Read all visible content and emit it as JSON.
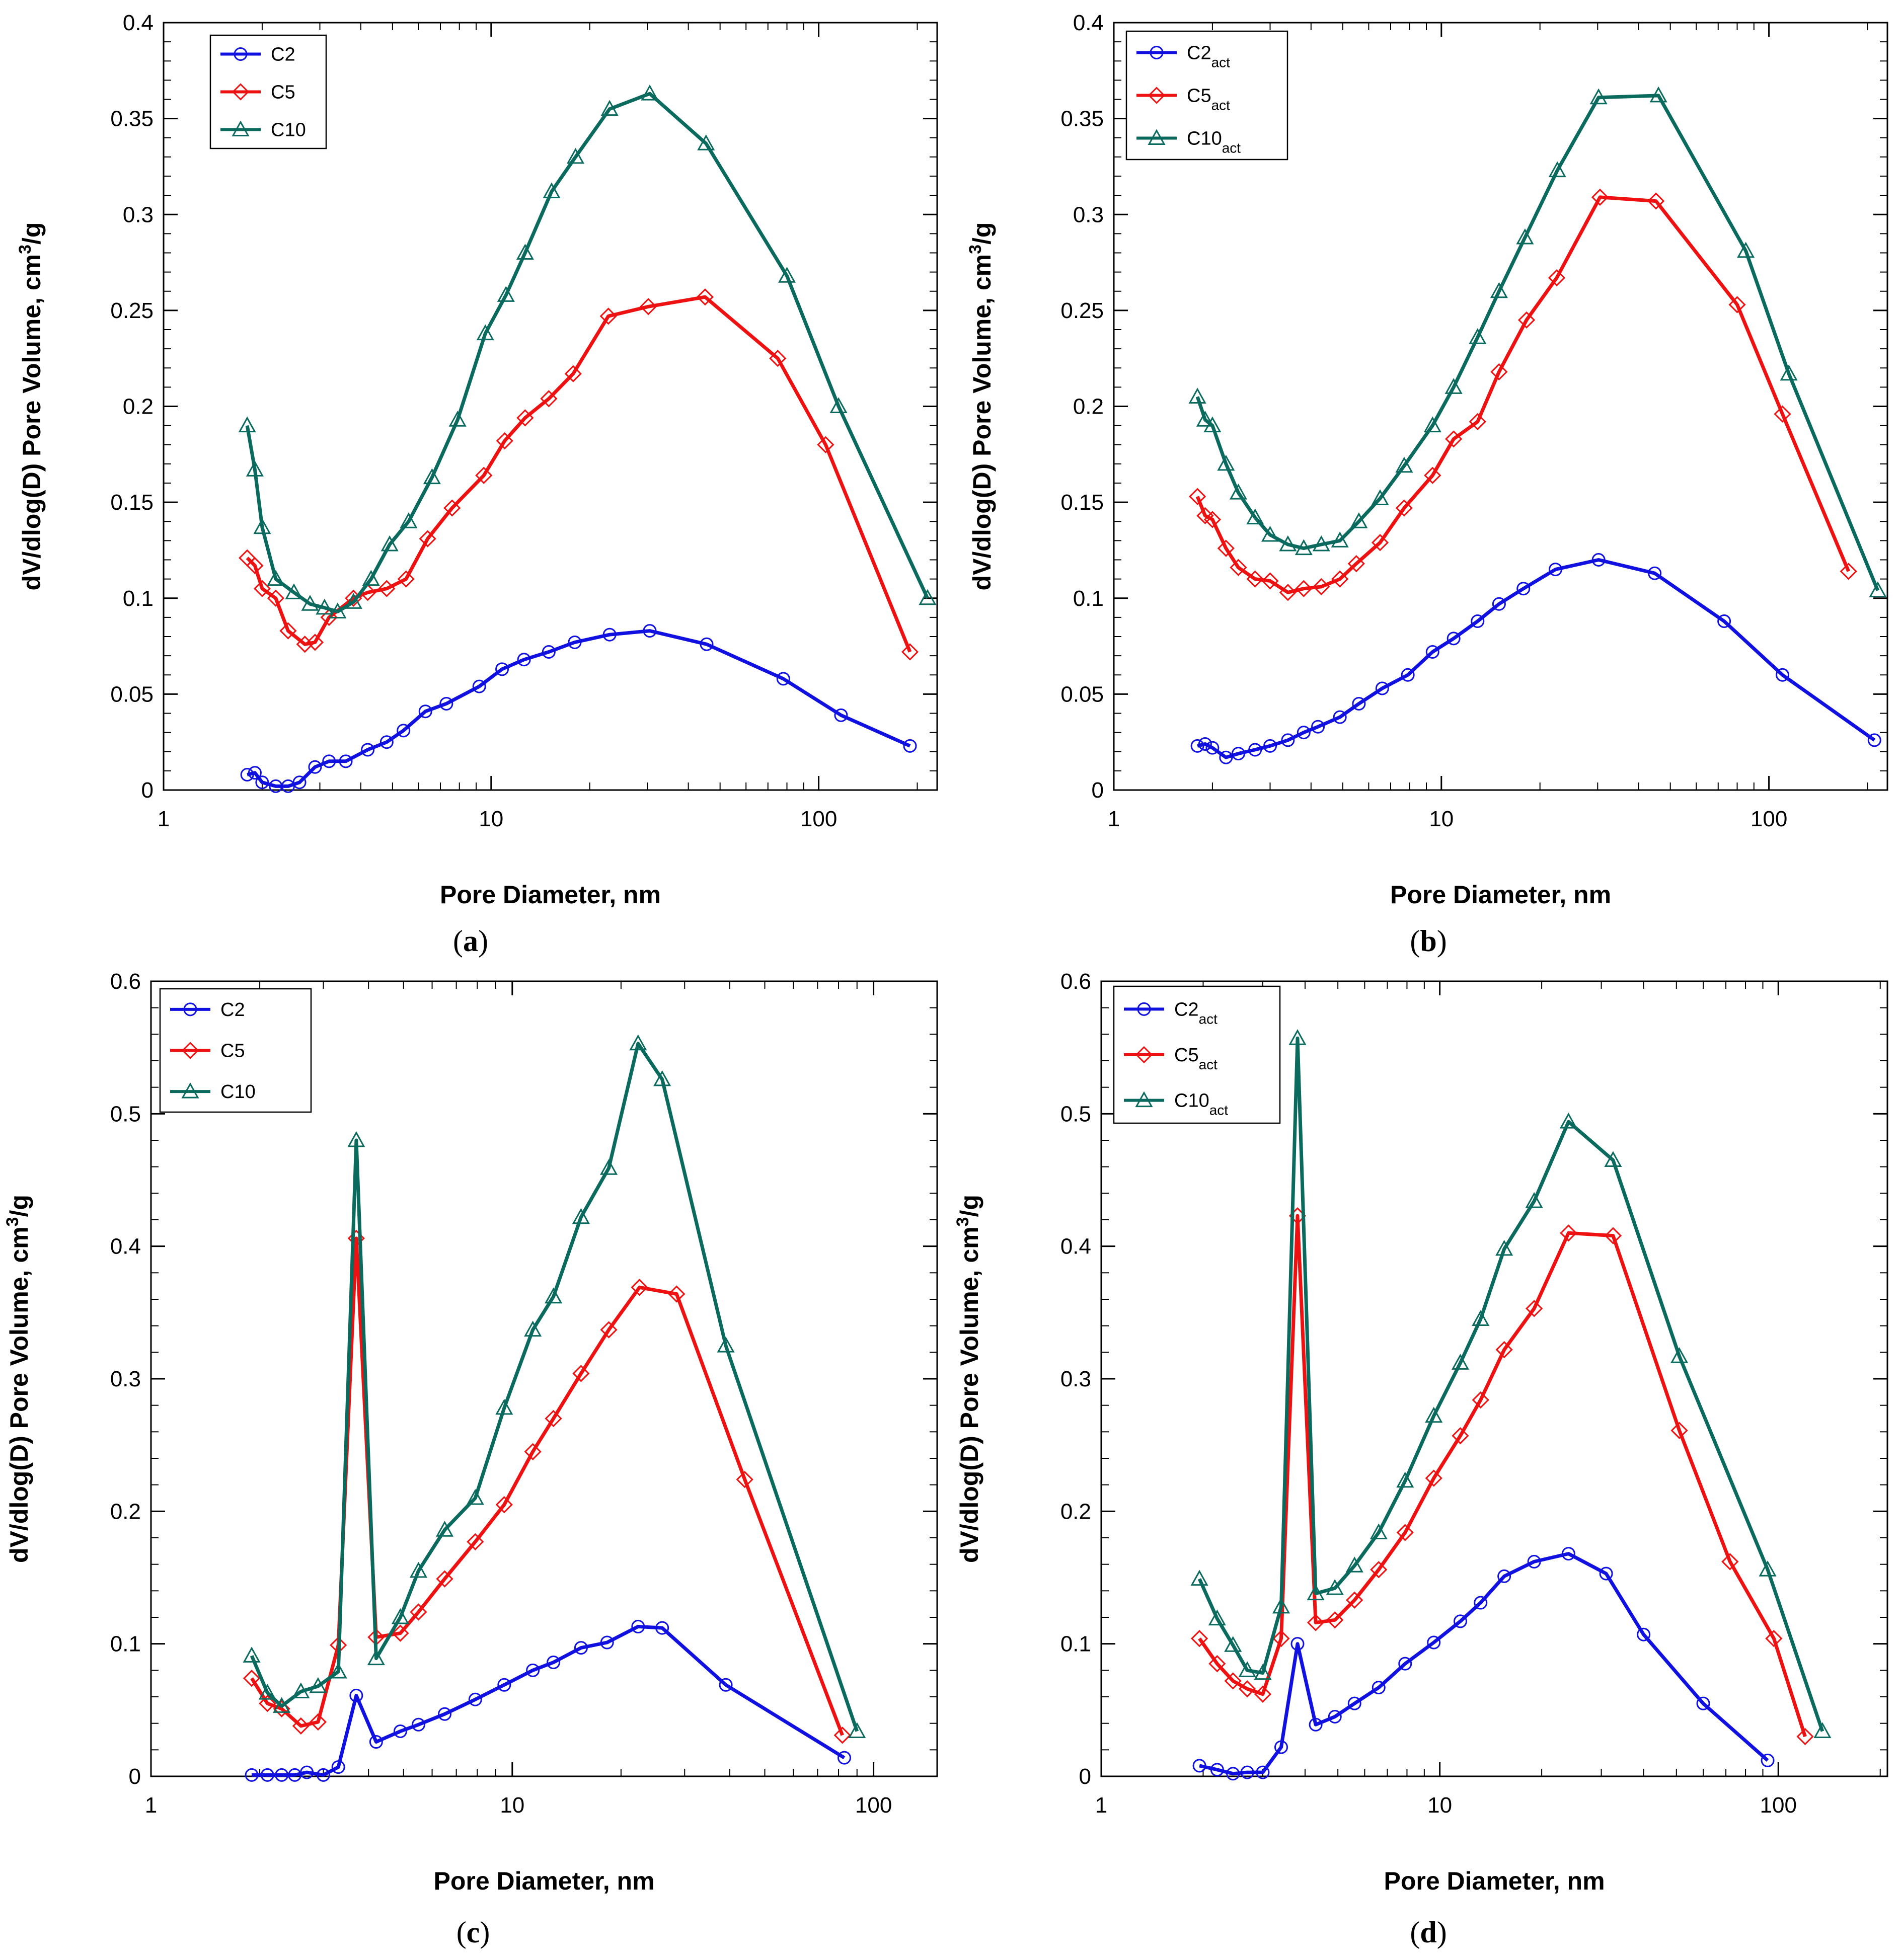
{
  "colors": {
    "C2": "#1010e0",
    "C5": "#ee1111",
    "C10": "#0a6a5e"
  },
  "chart_data": [
    {
      "panel": "a",
      "panel_label": "a",
      "type": "line",
      "x_scale": "log",
      "xlim": [
        1,
        230
      ],
      "ylim": [
        0,
        0.4
      ],
      "xlabel": "Pore Diameter, nm",
      "ylabel": "dV/dlog(D) Pore Volume, cm",
      "ylabel_sup": "3",
      "ylabel_tail": "/g",
      "x_ticks": [
        1,
        10,
        100
      ],
      "x_tick_labels": [
        "1",
        "10",
        "100"
      ],
      "y_ticks": [
        0,
        0.05,
        0.1,
        0.15,
        0.2,
        0.25,
        0.3,
        0.35,
        0.4
      ],
      "y_tick_labels": [
        "0",
        "0.05",
        "0.1",
        "0.15",
        "0.2",
        "0.25",
        "0.3",
        "0.35",
        "0.4"
      ],
      "legend_position": "top-left",
      "series": [
        {
          "name": "C2",
          "sub": "",
          "marker": "circle",
          "color_key": "C2",
          "x": [
            1.8,
            1.9,
            2.0,
            2.2,
            2.4,
            2.6,
            2.9,
            3.2,
            3.6,
            4.2,
            4.8,
            5.4,
            6.3,
            7.3,
            9.2,
            10.8,
            12.6,
            15.0,
            18.0,
            23.0,
            30.5,
            45.5,
            78.0,
            117.0,
            190.0
          ],
          "y": [
            0.008,
            0.009,
            0.004,
            0.002,
            0.002,
            0.004,
            0.012,
            0.015,
            0.015,
            0.021,
            0.025,
            0.031,
            0.041,
            0.045,
            0.054,
            0.063,
            0.068,
            0.072,
            0.077,
            0.081,
            0.083,
            0.076,
            0.058,
            0.039,
            0.023
          ]
        },
        {
          "name": "C5",
          "sub": "",
          "marker": "diamond",
          "color_key": "C5",
          "x": [
            1.8,
            1.9,
            2.0,
            2.2,
            2.4,
            2.7,
            2.9,
            3.2,
            3.8,
            4.2,
            4.8,
            5.5,
            6.4,
            7.6,
            9.5,
            11.0,
            12.7,
            15.0,
            17.8,
            22.8,
            30.2,
            45.0,
            75.0,
            105.0,
            190.0
          ],
          "y": [
            0.121,
            0.117,
            0.105,
            0.1,
            0.083,
            0.076,
            0.077,
            0.09,
            0.1,
            0.103,
            0.105,
            0.11,
            0.131,
            0.147,
            0.164,
            0.182,
            0.194,
            0.204,
            0.217,
            0.247,
            0.252,
            0.257,
            0.225,
            0.18,
            0.072
          ]
        },
        {
          "name": "C10",
          "sub": "",
          "marker": "triangle",
          "color_key": "C10",
          "x": [
            1.8,
            1.9,
            2.0,
            2.2,
            2.5,
            2.8,
            3.1,
            3.4,
            3.8,
            4.3,
            4.9,
            5.6,
            6.6,
            7.9,
            9.6,
            11.1,
            12.7,
            15.3,
            18.1,
            23.0,
            30.5,
            45.3,
            80.0,
            115.0,
            215.0
          ],
          "y": [
            0.19,
            0.167,
            0.137,
            0.11,
            0.103,
            0.097,
            0.095,
            0.093,
            0.098,
            0.11,
            0.128,
            0.14,
            0.163,
            0.193,
            0.238,
            0.258,
            0.28,
            0.312,
            0.33,
            0.355,
            0.363,
            0.337,
            0.268,
            0.2,
            0.1
          ]
        }
      ]
    },
    {
      "panel": "b",
      "panel_label": "b",
      "type": "line",
      "x_scale": "log",
      "xlim": [
        1,
        230
      ],
      "ylim": [
        0,
        0.4
      ],
      "xlabel": "Pore Diameter, nm",
      "ylabel": "dV/dlog(D) Pore Volume, cm",
      "ylabel_sup": "3",
      "ylabel_tail": "/g",
      "x_ticks": [
        1,
        10,
        100
      ],
      "x_tick_labels": [
        "1",
        "10",
        "100"
      ],
      "y_ticks": [
        0,
        0.05,
        0.1,
        0.15,
        0.2,
        0.25,
        0.3,
        0.35,
        0.4
      ],
      "y_tick_labels": [
        "0",
        "0.05",
        "0.1",
        "0.15",
        "0.2",
        "0.25",
        "0.3",
        "0.35",
        "0.4"
      ],
      "legend_position": "top-left",
      "series": [
        {
          "name": "C2",
          "sub": "act",
          "marker": "circle",
          "color_key": "C2",
          "x": [
            1.8,
            1.9,
            2.0,
            2.2,
            2.4,
            2.7,
            3.0,
            3.4,
            3.8,
            4.2,
            4.9,
            5.6,
            6.6,
            7.9,
            9.4,
            10.9,
            12.9,
            15.0,
            17.8,
            22.3,
            30.2,
            44.8,
            73.0,
            110.0,
            210.0
          ],
          "y": [
            0.023,
            0.024,
            0.022,
            0.017,
            0.019,
            0.021,
            0.023,
            0.026,
            0.03,
            0.033,
            0.038,
            0.045,
            0.053,
            0.06,
            0.072,
            0.079,
            0.088,
            0.097,
            0.105,
            0.115,
            0.12,
            0.113,
            0.088,
            0.06,
            0.026
          ]
        },
        {
          "name": "C5",
          "sub": "act",
          "marker": "diamond",
          "color_key": "C5",
          "x": [
            1.8,
            1.9,
            2.0,
            2.2,
            2.4,
            2.7,
            3.0,
            3.4,
            3.8,
            4.3,
            4.9,
            5.5,
            6.5,
            7.7,
            9.4,
            10.9,
            12.9,
            15.0,
            18.2,
            22.5,
            30.5,
            45.2,
            80.0,
            110.0,
            175.0
          ],
          "y": [
            0.153,
            0.143,
            0.141,
            0.126,
            0.116,
            0.11,
            0.109,
            0.103,
            0.105,
            0.106,
            0.11,
            0.118,
            0.129,
            0.147,
            0.164,
            0.183,
            0.192,
            0.218,
            0.245,
            0.267,
            0.309,
            0.307,
            0.253,
            0.196,
            0.114
          ]
        },
        {
          "name": "C10",
          "sub": "act",
          "marker": "triangle",
          "color_key": "C10",
          "x": [
            1.8,
            1.9,
            2.0,
            2.2,
            2.4,
            2.7,
            3.0,
            3.4,
            3.8,
            4.3,
            4.9,
            5.6,
            6.5,
            7.7,
            9.4,
            10.9,
            12.9,
            15.0,
            18.0,
            22.6,
            30.2,
            46.0,
            85.0,
            115.0,
            215.0
          ],
          "y": [
            0.205,
            0.193,
            0.19,
            0.17,
            0.155,
            0.142,
            0.133,
            0.128,
            0.126,
            0.128,
            0.13,
            0.14,
            0.152,
            0.169,
            0.19,
            0.21,
            0.236,
            0.26,
            0.288,
            0.323,
            0.361,
            0.362,
            0.281,
            0.217,
            0.104
          ]
        }
      ]
    },
    {
      "panel": "c",
      "panel_label": "c",
      "type": "line",
      "x_scale": "log",
      "xlim": [
        1,
        150
      ],
      "ylim": [
        0,
        0.6
      ],
      "xlabel": "Pore Diameter, nm",
      "ylabel": "dV/dlog(D) Pore Volume, cm",
      "ylabel_sup": "3",
      "ylabel_tail": "/g",
      "x_ticks": [
        1,
        10,
        100
      ],
      "x_tick_labels": [
        "1",
        "10",
        "100"
      ],
      "y_ticks": [
        0,
        0.1,
        0.2,
        0.3,
        0.4,
        0.5,
        0.6
      ],
      "y_tick_labels": [
        "0",
        "0.1",
        "0.2",
        "0.3",
        "0.4",
        "0.5",
        "0.6"
      ],
      "legend_position": "top-left",
      "series": [
        {
          "name": "C2",
          "sub": "",
          "marker": "circle",
          "color_key": "C2",
          "x": [
            1.9,
            2.1,
            2.3,
            2.5,
            2.7,
            3.0,
            3.3,
            3.7,
            4.2,
            4.9,
            5.5,
            6.5,
            7.9,
            9.5,
            11.4,
            13.0,
            15.5,
            18.3,
            22.3,
            26.0,
            39.0,
            83.0
          ],
          "y": [
            0.001,
            0.001,
            0.001,
            0.001,
            0.003,
            0.001,
            0.007,
            0.061,
            0.026,
            0.034,
            0.039,
            0.047,
            0.058,
            0.069,
            0.08,
            0.086,
            0.097,
            0.101,
            0.113,
            0.112,
            0.069,
            0.014
          ]
        },
        {
          "name": "C5",
          "sub": "",
          "marker": "diamond",
          "color_key": "C5",
          "x": [
            1.9,
            2.1,
            2.3,
            2.6,
            2.9,
            3.3,
            3.7,
            4.2,
            4.9,
            5.5,
            6.5,
            7.9,
            9.5,
            11.4,
            13.0,
            15.5,
            18.5,
            22.5,
            28.5,
            44.0,
            82.0
          ],
          "y": [
            0.074,
            0.055,
            0.051,
            0.038,
            0.041,
            0.099,
            0.406,
            0.105,
            0.108,
            0.124,
            0.149,
            0.177,
            0.205,
            0.245,
            0.27,
            0.304,
            0.337,
            0.369,
            0.364,
            0.224,
            0.031
          ]
        },
        {
          "name": "C10",
          "sub": "",
          "marker": "triangle",
          "color_key": "C10",
          "x": [
            1.9,
            2.1,
            2.3,
            2.6,
            2.9,
            3.3,
            3.7,
            4.2,
            4.9,
            5.5,
            6.5,
            7.9,
            9.5,
            11.4,
            13.0,
            15.5,
            18.5,
            22.3,
            26.0,
            39.0,
            90.0
          ],
          "y": [
            0.091,
            0.063,
            0.053,
            0.064,
            0.068,
            0.079,
            0.48,
            0.089,
            0.12,
            0.155,
            0.186,
            0.21,
            0.278,
            0.337,
            0.362,
            0.422,
            0.459,
            0.553,
            0.526,
            0.325,
            0.034
          ]
        }
      ]
    },
    {
      "panel": "d",
      "panel_label": "d",
      "type": "line",
      "x_scale": "log",
      "xlim": [
        1,
        210
      ],
      "ylim": [
        0,
        0.6
      ],
      "xlabel": "Pore Diameter, nm",
      "ylabel": "dV/dlog(D) Pore Volume, cm",
      "ylabel_sup": "3",
      "ylabel_tail": "/g",
      "x_ticks": [
        1,
        10,
        100
      ],
      "x_tick_labels": [
        "1",
        "10",
        "100"
      ],
      "y_ticks": [
        0,
        0.1,
        0.2,
        0.3,
        0.4,
        0.5,
        0.6
      ],
      "y_tick_labels": [
        "0",
        "0.1",
        "0.2",
        "0.3",
        "0.4",
        "0.5",
        "0.6"
      ],
      "legend_position": "top-left",
      "series": [
        {
          "name": "C2",
          "sub": "act",
          "marker": "circle",
          "color_key": "C2",
          "x": [
            1.95,
            2.2,
            2.45,
            2.7,
            3.0,
            3.4,
            3.8,
            4.3,
            4.9,
            5.6,
            6.6,
            7.9,
            9.6,
            11.5,
            13.2,
            15.5,
            19.0,
            24.0,
            31.0,
            40.0,
            60.0,
            93.0
          ],
          "y": [
            0.008,
            0.005,
            0.002,
            0.003,
            0.003,
            0.022,
            0.1,
            0.039,
            0.045,
            0.055,
            0.067,
            0.085,
            0.101,
            0.117,
            0.131,
            0.151,
            0.162,
            0.168,
            0.153,
            0.107,
            0.055,
            0.012
          ]
        },
        {
          "name": "C5",
          "sub": "act",
          "marker": "diamond",
          "color_key": "C5",
          "x": [
            1.95,
            2.2,
            2.45,
            2.7,
            3.0,
            3.4,
            3.8,
            4.3,
            4.9,
            5.6,
            6.6,
            7.9,
            9.6,
            11.5,
            13.2,
            15.5,
            19.0,
            24.0,
            32.5,
            51.0,
            72.0,
            97.0,
            120.0
          ],
          "y": [
            0.104,
            0.085,
            0.072,
            0.066,
            0.062,
            0.104,
            0.423,
            0.116,
            0.118,
            0.133,
            0.156,
            0.184,
            0.225,
            0.257,
            0.284,
            0.322,
            0.353,
            0.41,
            0.408,
            0.261,
            0.162,
            0.104,
            0.03
          ]
        },
        {
          "name": "C10",
          "sub": "act",
          "marker": "triangle",
          "color_key": "C10",
          "x": [
            1.95,
            2.2,
            2.45,
            2.7,
            3.0,
            3.4,
            3.8,
            4.3,
            4.9,
            5.6,
            6.6,
            7.9,
            9.6,
            11.5,
            13.2,
            15.5,
            19.0,
            24.0,
            32.5,
            51.0,
            93.0,
            135.0
          ],
          "y": [
            0.149,
            0.119,
            0.099,
            0.08,
            0.078,
            0.128,
            0.557,
            0.138,
            0.142,
            0.159,
            0.184,
            0.223,
            0.272,
            0.312,
            0.345,
            0.398,
            0.434,
            0.494,
            0.465,
            0.317,
            0.156,
            0.034
          ]
        }
      ]
    }
  ]
}
